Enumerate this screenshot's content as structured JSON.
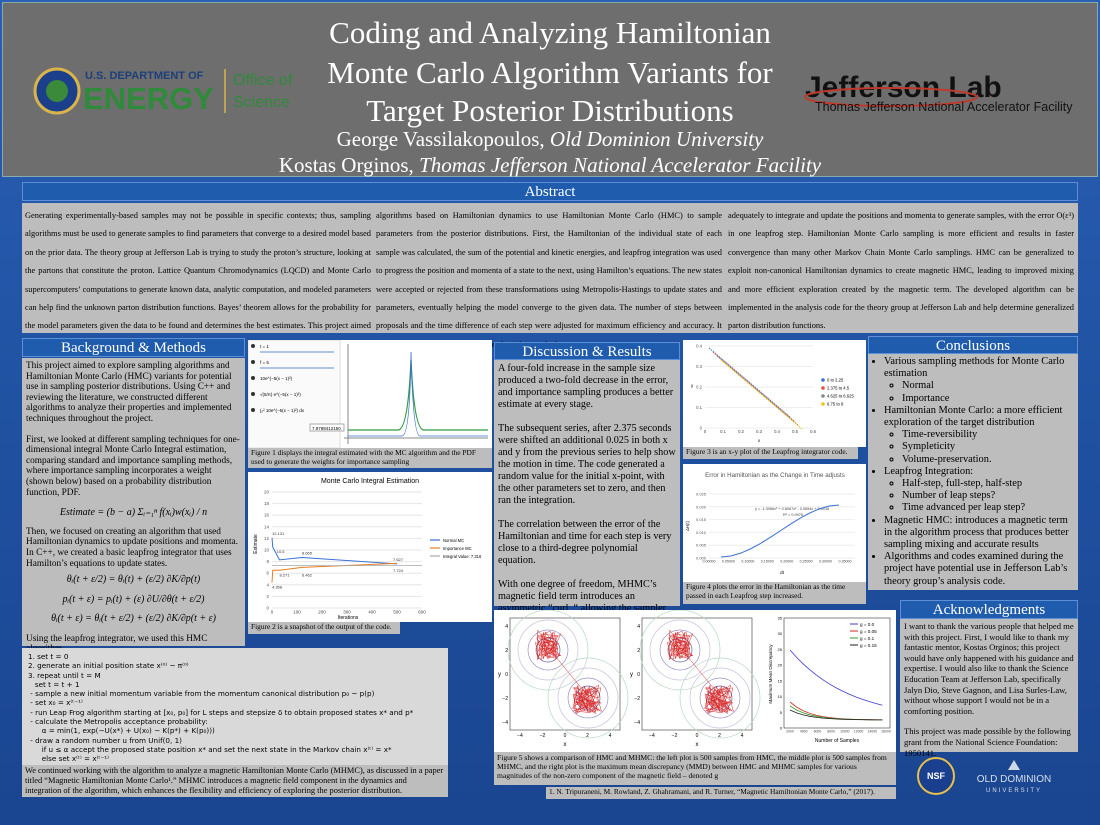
{
  "header": {
    "title_lines": [
      "Coding and Analyzing Hamiltonian",
      "Monte Carlo Algorithm Variants for",
      "Target Posterior Distributions"
    ],
    "authors": [
      {
        "name": "George Vassilakopoulos,",
        "affiliation": "Old Dominion University"
      },
      {
        "name": "Kostas Orginos,",
        "affiliation": "Thomas Jefferson National Accelerator Facility"
      }
    ],
    "doe": {
      "line1": "U.S. DEPARTMENT OF",
      "line2": "ENERGY",
      "office1": "Office of",
      "office2": "Science"
    },
    "jlab": {
      "name": "Jefferson Lab",
      "full": "Thomas Jefferson National Accelerator Facility"
    }
  },
  "abstract": {
    "heading": "Abstract",
    "columns": [
      "Generating experimentally-based samples may not be possible in specific contexts; thus, sampling algorithms must be used to generate samples to find parameters that converge to a desired model based on the prior data. The theory group at Jefferson Lab is trying to study the proton’s structure, looking at the partons that constitute the proton. Lattice Quantum Chromodynamics (LQCD) and Monte Carlo supercomputers’ computations to generate known data, analytic computation, and modeled parameters can help find the unknown parton distribution functions. Bayes’ theorem allows for the probability for the model parameters given the data to be found and determines the best estimates. This project aimed to explore sampling",
      "algorithms based on Hamiltonian dynamics to use Hamiltonian Monte Carlo (HMC) to sample parameters from the posterior distributions. First, the Hamiltonian of the individual state of each sample was calculated, the sum of the potential and kinetic energies, and leapfrog integration was used to progress the position and momenta of a state to the next, using Hamilton’s equations. The new states were accepted or rejected from these transformations using Metropolis-Hastings to update states and parameters, eventually helping the model converge to the given data. The number of steps between proposals and the time difference of each step were adjusted for maximum efficiency and accuracy. It was found that the code that ran the algorithm worked",
      "adequately to integrate and update the positions and momenta to generate samples, with the error O(ε³) in one leapfrog step. Hamiltonian Monte Carlo sampling is more efficient and results in faster convergence than many other Markov Chain Monte Carlo samplings. HMC can be generalized to exploit non-canonical Hamiltonian dynamics to create magnetic HMC, leading to improved mixing and more efficient exploration created by the magnetic term. The developed algorithm can be implemented in the analysis code for the theory group at Jefferson Lab and help determine generalized parton distribution functions."
    ]
  },
  "background": {
    "heading": "Background & Methods",
    "paragraphs": [
      "This project aimed to explore sampling algorithms and Hamiltonian Monte Carlo (HMC) variants for potential use in sampling posterior distributions. Using C++ and reviewing the literature, we constructed different algorithms to analyze their properties and implemented techniques throughout the project.",
      "First, we looked at different sampling techniques for one-dimensional integral Monte Carlo Integral estimation, comparing standard and importance sampling methods, where importance sampling incorporates a weight (shown below) based on a probability distribution function, PDF."
    ],
    "estimate_eq": "Estimate = (b − a) Σᵢ₌₁ⁿ f(xᵢ)w(xᵢ) / n",
    "middle": "Then, we focused on creating an algorithm that used Hamiltonian dynamics to update positions and momenta. In C++, we created a basic leapfrog integrator that uses Hamilton’s equations to update states.",
    "leapfrog_eqs": [
      "θᵢ(t + ε/2) = θᵢ(t) + (ε/2) ∂K/∂p(t)",
      "pᵢ(t + ε) = pᵢ(t) + (ε) ∂U/∂θ(t + ε/2)",
      "θᵢ(t + ε) = θᵢ(t + ε/2) + (ε/2) ∂K/∂p(t + ε)"
    ],
    "after_eqs": "Using the leapfrog integrator, we used this HMC algorithm.",
    "algorithm": [
      "1. set t = 0",
      "2. generate an initial position state x⁽⁰⁾ ~ π⁽⁰⁾",
      "3. repeat until t = M",
      "   set t = t + 1",
      " - sample a new initial momentum variable from the momentum canonical distribution p₀ ~ p(p)",
      " - set x₀ = x⁽ᵗ⁻¹⁾",
      " - run Leap Frog algorithm starting at [x₀, p₀] for L steps and stepsize δ to obtain proposed states x* and p*",
      " - calculate the Metropolis acceptance probability:",
      "      α = min(1, exp(−U(x*) + U(x₀) − K(p*) + K(p₀)))",
      " - draw a random number u from Unif(0, 1)",
      "      if u ≤ α accept the proposed state position x* and set the next state in the Markov chain x⁽ᵗ⁾ = x*",
      "      else set x⁽ᵗ⁾ = x⁽ᵗ⁻¹⁾"
    ],
    "closing": "We continued working with the algorithm to analyze a magnetic Hamiltonian Monte Carlo (MHMC), as discussed in a paper titled “Magnetic Hamiltonian Monte Carlo¹.” MHMC introduces a magnetic field component in the dynamics and integration of the algorithm, which enhances the flexibility and efficiency of exploring the posterior distribution."
  },
  "figure1": {
    "controls": [
      "t = 1",
      "f = 5",
      "10e^(−5(x − 1)²)",
      "√(5/π) e^(−5(x − 1)²)",
      "∫₀² 10e^(−5(x − 1)²) dx"
    ],
    "value_box": "7.9788412150",
    "caption": "Figure 1 displays the integral estimated with the MC algorithm and the PDF used to generate the weights for importance sampling"
  },
  "figure2": {
    "title": "Monte Carlo Integral Estimation",
    "y_label": "Estimate",
    "x_label": "Iterations",
    "yticks": [
      "0",
      "2",
      "4",
      "6",
      "8",
      "10",
      "12",
      "14",
      "16",
      "18",
      "20"
    ],
    "xticks": [
      "0",
      "100",
      "200",
      "300",
      "400",
      "500",
      "600"
    ],
    "legend": [
      "Normal MC",
      "Importance MC",
      "Integral Value: 7.316"
    ],
    "point_labels": [
      "12.131",
      "8.665",
      "7.627",
      "7.724",
      "6.462",
      "4.358",
      "10.5",
      "8.271"
    ],
    "caption": "Figure 2 is a snapshot of the output of the code."
  },
  "discussion": {
    "heading": "Discussion & Results",
    "paragraphs": [
      "A four-fold increase in the sample size produced a two-fold decrease in the error, and importance sampling produces a better estimate at every stage.",
      "The subsequent series, after 2.375 seconds were shifted an additional 0.025 in both x and y from the previous series to help show the motion in time. The code generated a random value for the initial x-point, with the other parameters set to zero, and then ran the integration.",
      "The correlation between the error of the Hamiltonian and time for each step is very close to a third-degree polynomial equation.",
      "With one degree of freedom, MHMC’s magnetic field term introduces an asymmetric “curl, “ allowing the sampler to mix around both saddle points."
    ]
  },
  "figure3": {
    "yticks": [
      "0",
      "0.1",
      "0.2",
      "0.3",
      "0.4"
    ],
    "xticks": [
      "0",
      "0.1",
      "0.2",
      "0.3",
      "0.4",
      "0.5",
      "0.6"
    ],
    "x_label": "x",
    "y_label": "y",
    "legend": [
      "0 to 2.25",
      "2.375 to 4.5",
      "4.625 to 6.625",
      "6.75 to 8"
    ],
    "caption": "Figure 3 is an x-y plot of the Leapfrog integrator code."
  },
  "figure4": {
    "title": "Error in Hamiltonian as the Change in Time adjusts",
    "equation": "y = -1.3066x³ + 0.8067x² - 0.0694x + 0.0016",
    "r2": "R² = 0.9978",
    "yticks": [
      "0.000",
      "0.005",
      "0.010",
      "0.015",
      "0.020",
      "0.025"
    ],
    "xticks": [
      "0.00000",
      "0.05000",
      "0.10000",
      "0.15000",
      "0.20000",
      "0.25000",
      "0.30000",
      "0.35000"
    ],
    "x_label": "dt",
    "y_label": "ΔH(t)",
    "caption": "Figure 4 plots the error in the Hamiltonian as the time passed in each Leapfrog step increased."
  },
  "figure5": {
    "contour_ticks": [
      "−4",
      "−2",
      "0",
      "2",
      "4"
    ],
    "x_label": "x",
    "y_label": "y",
    "mmd_yticks": [
      "0",
      "5",
      "10",
      "15",
      "20",
      "25",
      "30",
      "35"
    ],
    "mmd_xticks": [
      "2000",
      "4000",
      "6000",
      "8000",
      "10000",
      "12000",
      "14000",
      "16000"
    ],
    "mmd_x_label": "Number of Samples",
    "mmd_y_label": "Maximum Mean Discrepancy",
    "legend": [
      "g = 0.0",
      "g = 0.05",
      "g = 0.1",
      "g = 0.15"
    ],
    "caption": "Figure 5 shows a comparison of HMC and MHMC: the left plot is 500 samples from HMC, the middle plot is 500 samples from MHMC, and the right plot is the maximum mean discrepancy (MMD) between HMC and MHMC samples for various magnitudes of the non-zero component of the magnetic field – denoted g",
    "reference": "1. N. Tripuraneni, M. Rowland, Z. Ghahramani, and R. Turner, “Magnetic Hamiltonian Monte Carlo,” (2017)."
  },
  "conclusions": {
    "heading": "Conclusions",
    "items": [
      {
        "text": "Various sampling methods for Monte Carlo estimation",
        "sub": [
          "Normal",
          "Importance"
        ]
      },
      {
        "text": "Hamiltonian Monte Carlo: a more efficient exploration of the target distribution",
        "sub": [
          "Time-reversibility",
          "Sympleticity",
          "Volume-preservation."
        ]
      },
      {
        "text": "Leapfrog Integration:",
        "sub": [
          "Half-step, full-step, half-step",
          "Number of leap steps?",
          "Time advanced per leap step?"
        ]
      },
      {
        "text": "Magnetic HMC: introduces a magnetic term in the algorithm process that produces better sampling mixing and accurate results",
        "sub": []
      },
      {
        "text": "Algorithms and codes examined during the project have potential use in Jefferson Lab’s theory group’s analysis code.",
        "sub": []
      }
    ]
  },
  "acknowledgments": {
    "heading": "Acknowledgments",
    "paragraphs": [
      "I want to thank the various people that helped me with this project. First, I would like to thank my fantastic mentor, Kostas Orginos; this project would have only happened with his guidance and expertise. I would also like to thank the Science Education Team at Jefferson Lab, specifically Jalyn Dio, Steve Gagnon, and Lisa Surles-Law, without whose support I would not be in a comforting position.",
      "This project was made possible by the following grant from the National Science Foundation: 1950141."
    ]
  },
  "logos": {
    "nsf": "NSF",
    "odu1": "OLD DOMINION",
    "odu2": "UNIVERSITY"
  }
}
